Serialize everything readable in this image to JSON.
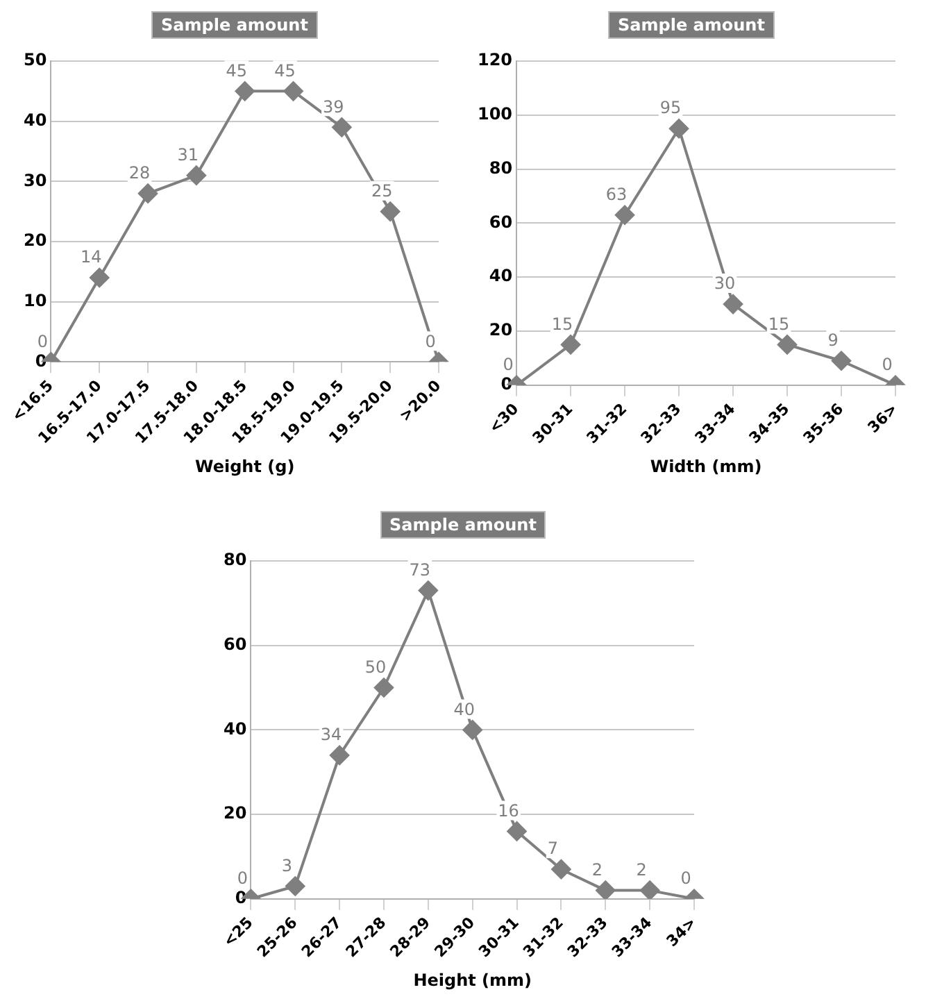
{
  "chart_data": [
    {
      "type": "line",
      "title": "Sample amount",
      "xlabel": "Weight (g)",
      "categories": [
        "<16.5",
        "16.5-17.0",
        "17.0-17.5",
        "17.5-18.0",
        "18.0-18.5",
        "18.5-19.0",
        "19.0-19.5",
        "19.5-20.0",
        ">20.0"
      ],
      "series": [
        {
          "color": "#7f7f7f",
          "values": [
            0,
            14,
            28,
            31,
            45,
            45,
            39,
            25,
            0
          ]
        }
      ],
      "ylim": [
        0,
        50
      ],
      "yticks": [
        0,
        10,
        20,
        30,
        40,
        50
      ],
      "grid": "y",
      "marker": "diamond",
      "line_style": "solid",
      "data_labels": true,
      "legend": false
    },
    {
      "type": "line",
      "title": "Sample amount",
      "xlabel": "Width (mm)",
      "categories": [
        "<30",
        "30-31",
        "31-32",
        "32-33",
        "33-34",
        "34-35",
        "35-36",
        "36>"
      ],
      "series": [
        {
          "color": "#7f7f7f",
          "values": [
            0,
            15,
            63,
            95,
            30,
            15,
            9,
            0
          ]
        }
      ],
      "ylim": [
        0,
        120
      ],
      "yticks": [
        0,
        20,
        40,
        60,
        80,
        100,
        120
      ],
      "grid": "y",
      "marker": "diamond",
      "line_style": "solid",
      "data_labels": true,
      "legend": false
    },
    {
      "type": "line",
      "title": "Sample amount",
      "xlabel": "Height (mm)",
      "categories": [
        "<25",
        "25-26",
        "26-27",
        "27-28",
        "28-29",
        "29-30",
        "30-31",
        "31-32",
        "32-33",
        "33-34",
        "34>"
      ],
      "series": [
        {
          "color": "#7f7f7f",
          "values": [
            0,
            3,
            34,
            50,
            73,
            40,
            16,
            7,
            2,
            2,
            0
          ]
        }
      ],
      "ylim": [
        0,
        80
      ],
      "yticks": [
        0,
        20,
        40,
        60,
        80
      ],
      "grid": "y",
      "marker": "diamond",
      "line_style": "solid",
      "data_labels": true,
      "legend": false
    }
  ]
}
